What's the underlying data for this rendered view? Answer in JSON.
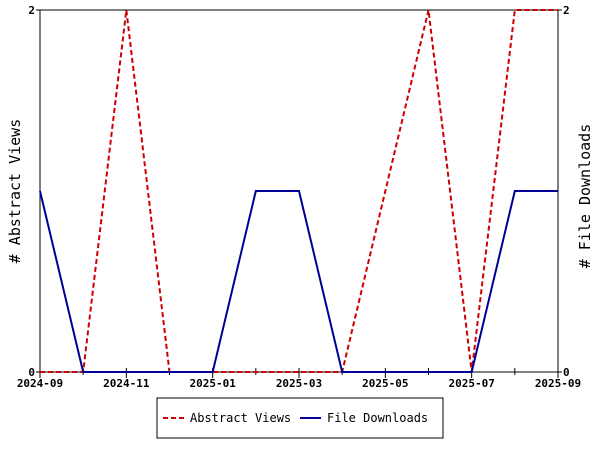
{
  "chart_data": {
    "type": "line",
    "title": "",
    "x": [
      "2024-09",
      "2024-10",
      "2024-11",
      "2024-12",
      "2025-01",
      "2025-02",
      "2025-03",
      "2025-04",
      "2025-05",
      "2025-06",
      "2025-07",
      "2025-08",
      "2025-09"
    ],
    "xticks": [
      "2024-09",
      "2024-11",
      "2025-01",
      "2025-03",
      "2025-05",
      "2025-07",
      "2025-09"
    ],
    "y_left": {
      "label": "# Abstract Views",
      "lim": [
        0,
        2
      ],
      "ticks": [
        "0",
        "2"
      ]
    },
    "y_right": {
      "label": "# File Downloads",
      "lim": [
        0,
        2
      ],
      "ticks": [
        "0",
        "2"
      ]
    },
    "series": [
      {
        "name": "Abstract Views",
        "axis": "left",
        "color": "#cc0000",
        "style": "dashed",
        "values": [
          0,
          0,
          2,
          0,
          0,
          0,
          0,
          0,
          1,
          2,
          0,
          2,
          2
        ]
      },
      {
        "name": "File Downloads",
        "axis": "right",
        "color": "#000099",
        "style": "solid",
        "values": [
          1,
          0,
          0,
          0,
          0,
          1,
          1,
          0,
          0,
          0,
          0,
          1,
          1
        ]
      }
    ],
    "legend_position": "bottom-center",
    "grid": false
  }
}
